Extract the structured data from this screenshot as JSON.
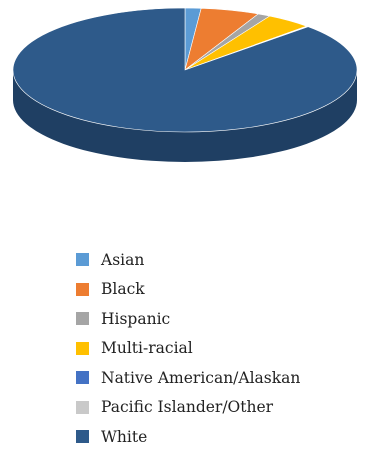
{
  "chart_data": {
    "type": "pie",
    "style": "3d",
    "title": "",
    "legend_position": "bottom",
    "categories": [
      "Asian",
      "Black",
      "Hispanic",
      "Multi-racial",
      "Native American/Alaskan",
      "Pacific Islander/Other",
      "White"
    ],
    "values": [
      1.5,
      5.5,
      1.2,
      4.3,
      0.1,
      0.1,
      87.3
    ],
    "colors": [
      "#5b9bd5",
      "#ed7d31",
      "#a5a5a5",
      "#ffc000",
      "#4472c4",
      "#c9c9c9",
      "#2e5a8a"
    ],
    "side_colors": [
      "#3f75a8",
      "#b85e22",
      "#7e7e7e",
      "#c79500",
      "#2f5596",
      "#9a9a9a",
      "#1f3f63"
    ],
    "unit": "percent"
  }
}
